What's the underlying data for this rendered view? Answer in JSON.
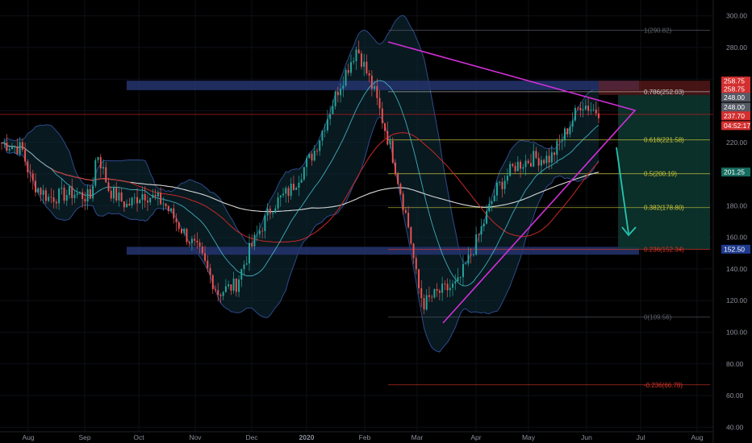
{
  "chart_data": {
    "type": "candlestick",
    "title": "",
    "x": {
      "labels": [
        "Aug",
        "Sep",
        "Oct",
        "Nov",
        "Dec",
        "2020",
        "Feb",
        "Mar",
        "Apr",
        "May",
        "Jun",
        "Jul",
        "Aug"
      ],
      "bold_label": "2020"
    },
    "y": {
      "range": [
        30,
        310
      ],
      "ticks": [
        40,
        60,
        80,
        100,
        120,
        140,
        160,
        180,
        200,
        220,
        240,
        260,
        280,
        300
      ],
      "tick_labels": [
        "40.00",
        "60.00",
        "80.00",
        "100.00",
        "120.00",
        "140.00",
        "160.00",
        "180.00",
        "200.00",
        "220.00",
        "240.00",
        "260.00",
        "280.00",
        "300.00"
      ]
    },
    "fib_levels": [
      {
        "ratio": "1",
        "price": 290.82,
        "label": "1(290.82)",
        "color": "#5d606b"
      },
      {
        "ratio": "0.786",
        "price": 252.03,
        "label": "0.786(252.03)",
        "color": "#c8c8c8"
      },
      {
        "ratio": "0.618",
        "price": 221.58,
        "label": "0.618(221.58)",
        "color": "#cdc83a"
      },
      {
        "ratio": "0.5",
        "price": 200.19,
        "label": "0.5(200.19)",
        "color": "#cdc83a"
      },
      {
        "ratio": "0.382",
        "price": 178.8,
        "label": "0.382(178.80)",
        "color": "#cdc83a"
      },
      {
        "ratio": "0.236",
        "price": 152.34,
        "label": "0.236(152.34)",
        "color": "#e0352b"
      },
      {
        "ratio": "0",
        "price": 109.56,
        "label": "0(109.56)",
        "color": "#5d606b"
      },
      {
        "ratio": "-0.236",
        "price": 66.78,
        "label": "-0.236(66.78)",
        "color": "#e0352b"
      }
    ],
    "zones": [
      {
        "name": "resistance",
        "from": 253,
        "to": 259,
        "color": "#24346e"
      },
      {
        "name": "support",
        "from": 149,
        "to": 154,
        "color": "#24346e"
      }
    ],
    "red_horizontal": 237.7,
    "price_tags": [
      {
        "text": "258.75",
        "price": 258.75,
        "bg": "#d32f2f"
      },
      {
        "text": "258.75",
        "price": 253.8,
        "bg": "#d32f2f"
      },
      {
        "text": "248.00",
        "price": 248.5,
        "bg": "#555a66"
      },
      {
        "text": "248.00",
        "price": 242.3,
        "bg": "#555a66"
      },
      {
        "text": "237.70",
        "price": 236.8,
        "bg": "#d32f2f"
      },
      {
        "text": "04:52:17",
        "price": 230.6,
        "bg": "#d32f2f"
      },
      {
        "text": "201.25",
        "price": 201.25,
        "bg": "#166c5f"
      },
      {
        "text": "152.50",
        "price": 152.5,
        "bg": "#1f3b8f"
      }
    ],
    "candles_approx": {
      "count": 230,
      "anchors": [
        [
          0,
          220
        ],
        [
          18,
          216
        ],
        [
          26,
          195
        ],
        [
          40,
          185
        ],
        [
          60,
          188
        ],
        [
          75,
          185
        ],
        [
          80,
          215
        ],
        [
          90,
          190
        ],
        [
          105,
          180
        ],
        [
          118,
          188
        ],
        [
          135,
          182
        ],
        [
          152,
          163
        ],
        [
          165,
          150
        ],
        [
          180,
          125
        ],
        [
          195,
          130
        ],
        [
          205,
          150
        ],
        [
          225,
          180
        ],
        [
          240,
          190
        ],
        [
          260,
          215
        ],
        [
          280,
          255
        ],
        [
          295,
          280
        ],
        [
          310,
          250
        ],
        [
          325,
          210
        ],
        [
          338,
          165
        ],
        [
          345,
          130
        ],
        [
          350,
          118
        ],
        [
          362,
          125
        ],
        [
          378,
          130
        ],
        [
          395,
          160
        ],
        [
          410,
          190
        ],
        [
          425,
          205
        ],
        [
          440,
          210
        ],
        [
          455,
          210
        ],
        [
          470,
          230
        ],
        [
          480,
          245
        ],
        [
          492,
          240
        ]
      ]
    }
  },
  "colors": {
    "background": "#000000",
    "up": "#26a69a",
    "down": "#ef5350",
    "triangle": "#d12fd6",
    "arrow": "#26c6b0",
    "ma_white": "#d8d8d8",
    "ma_red": "#c62828",
    "ma_cyan": "#4dd0e1",
    "bb_line": "#2e4a8a",
    "bb_fill": "#0f2d3a"
  }
}
